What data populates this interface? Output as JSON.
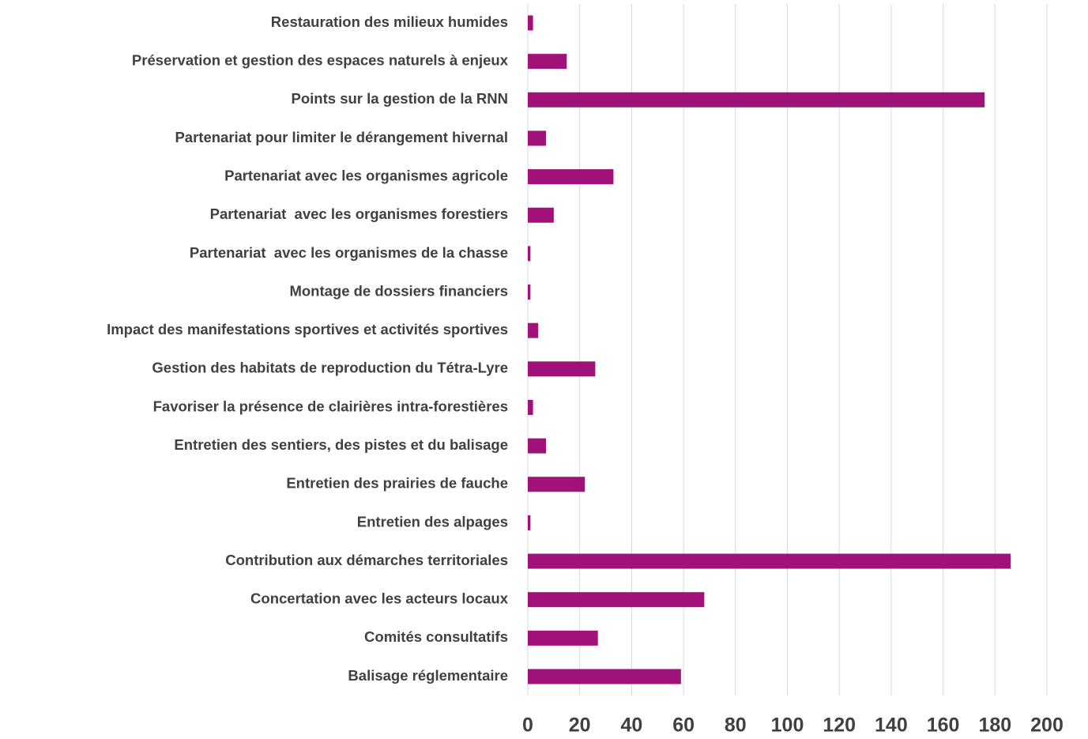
{
  "chart_data": {
    "type": "hbar",
    "categories": [
      "Restauration des milieux humides",
      "Préservation et gestion des espaces naturels à enjeux",
      "Points sur la gestion de la RNN",
      "Partenariat pour limiter le dérangement hivernal",
      "Partenariat avec les organismes agricole",
      "Partenariat  avec les organismes forestiers",
      "Partenariat  avec les organismes de la chasse",
      "Montage de dossiers financiers",
      "Impact des manifestations sportives et activités sportives",
      "Gestion des habitats de reproduction du Tétra-Lyre",
      "Favoriser la présence de clairières intra-forestières",
      "Entretien des sentiers, des pistes et du balisage",
      "Entretien des prairies de fauche",
      "Entretien des alpages",
      "Contribution aux démarches territoriales",
      "Concertation avec les acteurs locaux",
      "Comités consultatifs",
      "Balisage réglementaire"
    ],
    "values": [
      2,
      15,
      176,
      7,
      33,
      10,
      1,
      1,
      4,
      26,
      2,
      7,
      22,
      1,
      186,
      68,
      27,
      59
    ],
    "color": "#a0117a",
    "xlim": [
      0,
      200
    ],
    "xticks": [
      0,
      20,
      40,
      60,
      80,
      100,
      120,
      140,
      160,
      180,
      200
    ],
    "grid": true
  }
}
